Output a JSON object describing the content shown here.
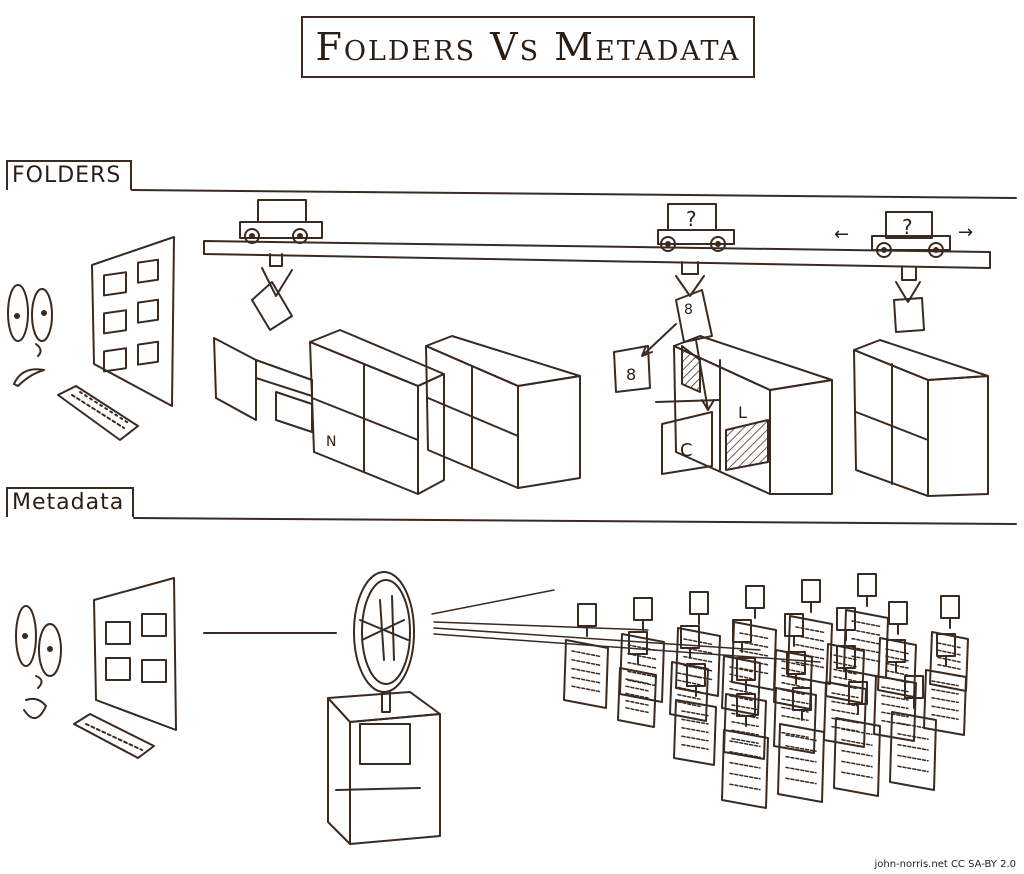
{
  "title": "Folders Vs Metadata",
  "sections": {
    "folders": {
      "label": "FOLDERS"
    },
    "metadata": {
      "label": "Metadata"
    }
  },
  "credit": "john-norris.net CC SA-BY 2.0",
  "glyphs": {
    "question_mark": "?",
    "arrow_left": "←",
    "arrow_right": "→",
    "doc_letter_8": "8",
    "doc_letter_c": "C",
    "drawer_letter_l": "L",
    "drawer_letter_n": "N"
  },
  "colors": {
    "ink": "#2b1d14",
    "paper": "#ffffff"
  }
}
